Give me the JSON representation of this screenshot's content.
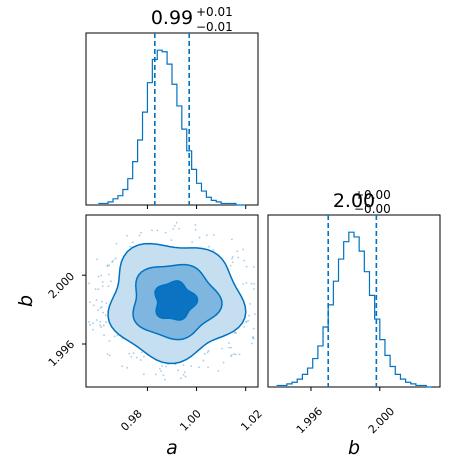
{
  "chart_data": [
    {
      "type": "histogram",
      "panel": "marginal-a",
      "title": {
        "value": "0.99",
        "plus": "+0.01",
        "minus": "−0.01"
      },
      "xlim": [
        0.955,
        1.025
      ],
      "bins_x": [
        0.96,
        0.962,
        0.964,
        0.966,
        0.968,
        0.97,
        0.972,
        0.974,
        0.976,
        0.978,
        0.98,
        0.982,
        0.984,
        0.986,
        0.988,
        0.99,
        0.992,
        0.994,
        0.996,
        0.998,
        1.0,
        1.002,
        1.004,
        1.006,
        1.008,
        1.01,
        1.012,
        1.014,
        1.016,
        1.018,
        1.02
      ],
      "counts": [
        1,
        1,
        2,
        4,
        6,
        10,
        17,
        28,
        42,
        60,
        79,
        94,
        100,
        99,
        91,
        78,
        64,
        49,
        35,
        23,
        14,
        9,
        5,
        3,
        2,
        1,
        1,
        1,
        0,
        0
      ],
      "quantile_lines": [
        0.983,
        0.997
      ],
      "color": "#0072C1"
    },
    {
      "type": "contour",
      "panel": "joint-a-b",
      "xlim": [
        0.955,
        1.025
      ],
      "ylim": [
        1.9935,
        2.0035
      ],
      "xticks": [
        0.98,
        1.0,
        1.02
      ],
      "xtick_labels": [
        "0.98",
        "1.00",
        "1.02"
      ],
      "yticks": [
        1.996,
        2.0
      ],
      "ytick_labels": [
        "1.996",
        "2.000"
      ],
      "xlabel": "a",
      "ylabel": "b",
      "center": [
        0.991,
        1.9985
      ],
      "color": "#0072C1",
      "level_fills": [
        "#c6dff0",
        "#7fb6df",
        "#0a74c2"
      ]
    },
    {
      "type": "histogram",
      "panel": "marginal-b",
      "title": {
        "value": "2.00",
        "plus": "+0.00",
        "minus": "−0.00"
      },
      "xlim": [
        1.9935,
        2.0035
      ],
      "bins_x": [
        1.994,
        1.9943,
        1.9946,
        1.9949,
        1.9952,
        1.9955,
        1.9958,
        1.9961,
        1.9964,
        1.9967,
        1.997,
        1.9973,
        1.9976,
        1.9979,
        1.9982,
        1.9985,
        1.9988,
        1.9991,
        1.9994,
        1.9997,
        2.0,
        2.0003,
        2.0006,
        2.0009,
        2.0012,
        2.0015,
        2.0018,
        2.0021,
        2.0024,
        2.0027,
        2.003
      ],
      "counts": [
        1,
        1,
        2,
        3,
        5,
        8,
        12,
        18,
        26,
        38,
        52,
        67,
        81,
        92,
        98,
        95,
        86,
        73,
        58,
        43,
        30,
        20,
        13,
        8,
        5,
        3,
        2,
        1,
        1,
        0
      ],
      "quantile_lines": [
        1.997,
        1.9998
      ],
      "xticks": [
        1.996,
        2.0
      ],
      "xtick_labels": [
        "1.996",
        "2.000"
      ],
      "xlabel": "b",
      "color": "#0072C1"
    }
  ]
}
